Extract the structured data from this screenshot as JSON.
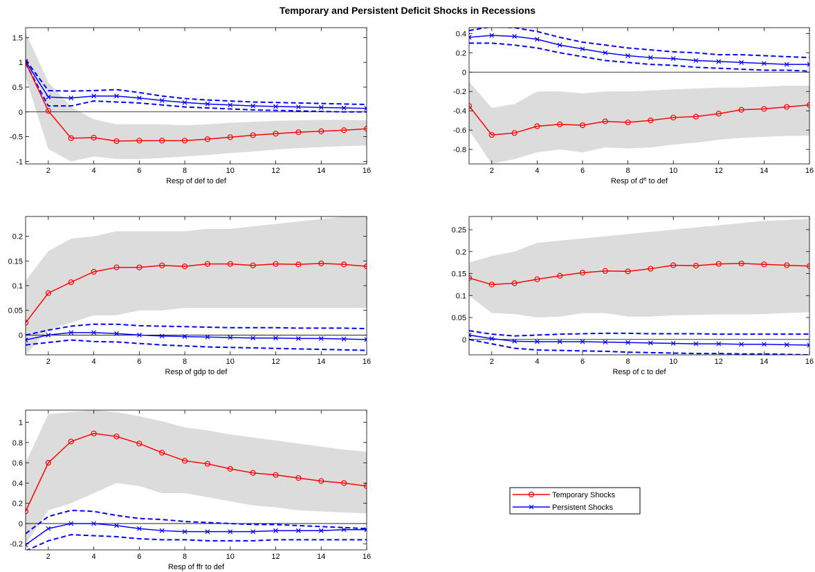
{
  "title": "Temporary and Persistent Deficit Shocks in Recessions",
  "chart_data": [
    {
      "type": "line",
      "xlabel": "Resp of def to def",
      "x": [
        1,
        2,
        3,
        4,
        5,
        6,
        7,
        8,
        9,
        10,
        11,
        12,
        13,
        14,
        15,
        16
      ],
      "xlim": [
        1,
        16
      ],
      "xticks": [
        2,
        4,
        6,
        8,
        10,
        12,
        14,
        16
      ],
      "ylim": [
        -1.05,
        1.7
      ],
      "yticks": [
        -1,
        -0.5,
        0,
        0.5,
        1,
        1.5
      ],
      "series": [
        {
          "name": "Temporary Shocks",
          "color": "#ff0000",
          "marker": "o",
          "band": "shaded",
          "band_color": "#dcdcdc",
          "values": [
            1,
            0.02,
            -0.53,
            -0.52,
            -0.59,
            -0.58,
            -0.58,
            -0.58,
            -0.55,
            -0.51,
            -0.47,
            -0.44,
            -0.41,
            -0.39,
            -0.37,
            -0.34
          ],
          "upper": [
            1.6,
            0.6,
            0.1,
            -0.15,
            -0.25,
            -0.25,
            -0.25,
            -0.27,
            -0.25,
            -0.22,
            -0.2,
            -0.18,
            -0.17,
            -0.16,
            -0.16,
            -0.17
          ],
          "lower": [
            0.7,
            -0.75,
            -1.0,
            -0.9,
            -0.95,
            -0.95,
            -0.93,
            -0.9,
            -0.87,
            -0.83,
            -0.8,
            -0.76,
            -0.73,
            -0.71,
            -0.69,
            -0.68
          ]
        },
        {
          "name": "Persistent Shocks",
          "color": "#0000ff",
          "marker": "x",
          "band": "dashed",
          "band_color": "#0000ff",
          "values": [
            1.02,
            0.3,
            0.28,
            0.32,
            0.32,
            0.28,
            0.23,
            0.19,
            0.16,
            0.14,
            0.12,
            0.11,
            0.1,
            0.09,
            0.08,
            0.07
          ],
          "upper": [
            1.05,
            0.43,
            0.42,
            0.43,
            0.45,
            0.39,
            0.32,
            0.27,
            0.24,
            0.22,
            0.2,
            0.19,
            0.18,
            0.17,
            0.16,
            0.15
          ],
          "lower": [
            0.98,
            0.12,
            0.12,
            0.22,
            0.2,
            0.18,
            0.14,
            0.1,
            0.08,
            0.06,
            0.04,
            0.03,
            0.02,
            0.01,
            0.0,
            0.0
          ]
        }
      ]
    },
    {
      "type": "line",
      "xlabel": [
        "Resp of d",
        "e",
        " to def"
      ],
      "x": [
        1,
        2,
        3,
        4,
        5,
        6,
        7,
        8,
        9,
        10,
        11,
        12,
        13,
        14,
        15,
        16
      ],
      "xlim": [
        1,
        16
      ],
      "xticks": [
        2,
        4,
        6,
        8,
        10,
        12,
        14,
        16
      ],
      "ylim": [
        -0.95,
        0.46
      ],
      "yticks": [
        -0.8,
        -0.6,
        -0.4,
        -0.2,
        0,
        0.2,
        0.4
      ],
      "series": [
        {
          "name": "Temporary Shocks",
          "color": "#ff0000",
          "marker": "o",
          "band": "shaded",
          "band_color": "#dcdcdc",
          "values": [
            -0.35,
            -0.65,
            -0.63,
            -0.56,
            -0.54,
            -0.55,
            -0.51,
            -0.52,
            -0.5,
            -0.47,
            -0.46,
            -0.43,
            -0.39,
            -0.38,
            -0.36,
            -0.34
          ],
          "upper": [
            -0.1,
            -0.37,
            -0.33,
            -0.2,
            -0.2,
            -0.22,
            -0.2,
            -0.2,
            -0.19,
            -0.18,
            -0.17,
            -0.16,
            -0.16,
            -0.15,
            -0.14,
            -0.14
          ],
          "lower": [
            -0.6,
            -0.95,
            -0.9,
            -0.83,
            -0.8,
            -0.83,
            -0.78,
            -0.79,
            -0.78,
            -0.75,
            -0.73,
            -0.7,
            -0.68,
            -0.67,
            -0.66,
            -0.66
          ]
        },
        {
          "name": "Persistent Shocks",
          "color": "#0000ff",
          "marker": "x",
          "band": "dashed",
          "band_color": "#0000ff",
          "values": [
            0.36,
            0.38,
            0.37,
            0.34,
            0.28,
            0.24,
            0.2,
            0.17,
            0.15,
            0.14,
            0.12,
            0.11,
            0.1,
            0.09,
            0.08,
            0.08
          ],
          "upper": [
            0.43,
            0.47,
            0.46,
            0.42,
            0.36,
            0.31,
            0.28,
            0.25,
            0.23,
            0.21,
            0.2,
            0.18,
            0.18,
            0.17,
            0.16,
            0.15
          ],
          "lower": [
            0.3,
            0.3,
            0.28,
            0.25,
            0.2,
            0.16,
            0.12,
            0.1,
            0.08,
            0.07,
            0.05,
            0.04,
            0.03,
            0.02,
            0.02,
            0.01
          ]
        }
      ]
    },
    {
      "type": "line",
      "xlabel": "Resp of gdp to def",
      "x": [
        1,
        2,
        3,
        4,
        5,
        6,
        7,
        8,
        9,
        10,
        11,
        12,
        13,
        14,
        15,
        16
      ],
      "xlim": [
        1,
        16
      ],
      "xticks": [
        2,
        4,
        6,
        8,
        10,
        12,
        14,
        16
      ],
      "ylim": [
        -0.04,
        0.24
      ],
      "yticks": [
        0,
        0.05,
        0.1,
        0.15,
        0.2
      ],
      "series": [
        {
          "name": "Temporary Shocks",
          "color": "#ff0000",
          "marker": "o",
          "band": "shaded",
          "band_color": "#dcdcdc",
          "values": [
            0.025,
            0.085,
            0.107,
            0.128,
            0.137,
            0.137,
            0.141,
            0.139,
            0.144,
            0.144,
            0.141,
            0.144,
            0.143,
            0.145,
            0.143,
            0.139
          ],
          "upper": [
            0.11,
            0.17,
            0.195,
            0.2,
            0.21,
            0.21,
            0.21,
            0.21,
            0.215,
            0.215,
            0.22,
            0.225,
            0.23,
            0.235,
            0.24,
            0.24
          ],
          "lower": [
            -0.04,
            0.01,
            0.025,
            0.04,
            0.04,
            0.05,
            0.05,
            0.055,
            0.055,
            0.055,
            0.055,
            0.055,
            0.055,
            0.055,
            0.055,
            0.055
          ]
        },
        {
          "name": "Persistent Shocks",
          "color": "#0000ff",
          "marker": "x",
          "band": "dashed",
          "band_color": "#0000ff",
          "values": [
            -0.01,
            0.0,
            0.005,
            0.005,
            0.003,
            0.0,
            -0.002,
            -0.003,
            -0.004,
            -0.005,
            -0.006,
            -0.006,
            -0.007,
            -0.007,
            -0.008,
            -0.009
          ],
          "upper": [
            0.0,
            0.01,
            0.018,
            0.022,
            0.022,
            0.019,
            0.018,
            0.017,
            0.016,
            0.015,
            0.015,
            0.015,
            0.014,
            0.014,
            0.014,
            0.013
          ],
          "lower": [
            -0.02,
            -0.015,
            -0.01,
            -0.013,
            -0.014,
            -0.017,
            -0.02,
            -0.022,
            -0.024,
            -0.025,
            -0.026,
            -0.027,
            -0.028,
            -0.029,
            -0.03,
            -0.031
          ]
        }
      ]
    },
    {
      "type": "line",
      "xlabel": "Resp of c to def",
      "x": [
        1,
        2,
        3,
        4,
        5,
        6,
        7,
        8,
        9,
        10,
        11,
        12,
        13,
        14,
        15,
        16
      ],
      "xlim": [
        1,
        16
      ],
      "xticks": [
        2,
        4,
        6,
        8,
        10,
        12,
        14,
        16
      ],
      "ylim": [
        -0.035,
        0.28
      ],
      "yticks": [
        0,
        0.05,
        0.1,
        0.15,
        0.2,
        0.25
      ],
      "series": [
        {
          "name": "Temporary Shocks",
          "color": "#ff0000",
          "marker": "o",
          "band": "shaded",
          "band_color": "#dcdcdc",
          "values": [
            0.14,
            0.125,
            0.128,
            0.137,
            0.145,
            0.152,
            0.156,
            0.155,
            0.161,
            0.169,
            0.168,
            0.172,
            0.173,
            0.171,
            0.169,
            0.167
          ],
          "upper": [
            0.175,
            0.19,
            0.2,
            0.22,
            0.225,
            0.23,
            0.235,
            0.24,
            0.245,
            0.25,
            0.255,
            0.26,
            0.265,
            0.27,
            0.272,
            0.275
          ],
          "lower": [
            0.1,
            0.06,
            0.058,
            0.05,
            0.052,
            0.06,
            0.06,
            0.052,
            0.052,
            0.055,
            0.056,
            0.057,
            0.057,
            0.058,
            0.06,
            0.062
          ]
        },
        {
          "name": "Persistent Shocks",
          "color": "#0000ff",
          "marker": "x",
          "band": "dashed",
          "band_color": "#0000ff",
          "values": [
            0.01,
            0.002,
            -0.004,
            -0.005,
            -0.005,
            -0.005,
            -0.006,
            -0.007,
            -0.008,
            -0.009,
            -0.01,
            -0.01,
            -0.011,
            -0.011,
            -0.012,
            -0.013
          ],
          "upper": [
            0.02,
            0.012,
            0.008,
            0.01,
            0.012,
            0.013,
            0.014,
            0.014,
            0.013,
            0.013,
            0.013,
            0.012,
            0.012,
            0.012,
            0.012,
            0.012
          ],
          "lower": [
            0.0,
            -0.01,
            -0.02,
            -0.024,
            -0.025,
            -0.026,
            -0.027,
            -0.029,
            -0.03,
            -0.031,
            -0.032,
            -0.032,
            -0.033,
            -0.033,
            -0.034,
            -0.035
          ]
        }
      ]
    },
    {
      "type": "line",
      "xlabel": "Resp of ffr to def",
      "x": [
        1,
        2,
        3,
        4,
        5,
        6,
        7,
        8,
        9,
        10,
        11,
        12,
        13,
        14,
        15,
        16
      ],
      "xlim": [
        1,
        16
      ],
      "xticks": [
        2,
        4,
        6,
        8,
        10,
        12,
        14,
        16
      ],
      "ylim": [
        -0.26,
        1.12
      ],
      "yticks": [
        -0.2,
        0,
        0.2,
        0.4,
        0.6,
        0.8,
        1
      ],
      "series": [
        {
          "name": "Temporary Shocks",
          "color": "#ff0000",
          "marker": "o",
          "band": "shaded",
          "band_color": "#dcdcdc",
          "values": [
            0.12,
            0.6,
            0.81,
            0.89,
            0.86,
            0.79,
            0.7,
            0.62,
            0.59,
            0.54,
            0.5,
            0.48,
            0.45,
            0.42,
            0.4,
            0.37
          ],
          "upper": [
            0.6,
            1.08,
            1.1,
            1.12,
            1.1,
            1.06,
            1.01,
            0.95,
            0.92,
            0.88,
            0.85,
            0.82,
            0.79,
            0.76,
            0.73,
            0.71
          ],
          "lower": [
            -0.2,
            0.13,
            0.2,
            0.3,
            0.4,
            0.37,
            0.3,
            0.3,
            0.26,
            0.22,
            0.18,
            0.16,
            0.13,
            0.12,
            0.11,
            0.1
          ]
        },
        {
          "name": "Persistent Shocks",
          "color": "#0000ff",
          "marker": "x",
          "band": "dashed",
          "band_color": "#0000ff",
          "values": [
            -0.21,
            -0.05,
            0.0,
            0.0,
            -0.02,
            -0.05,
            -0.07,
            -0.08,
            -0.08,
            -0.08,
            -0.08,
            -0.07,
            -0.07,
            -0.07,
            -0.06,
            -0.06
          ],
          "upper": [
            -0.1,
            0.07,
            0.13,
            0.12,
            0.08,
            0.05,
            0.04,
            0.02,
            0.01,
            0.0,
            -0.01,
            -0.01,
            -0.02,
            -0.03,
            -0.04,
            -0.05
          ],
          "lower": [
            -0.27,
            -0.17,
            -0.11,
            -0.12,
            -0.13,
            -0.15,
            -0.16,
            -0.16,
            -0.17,
            -0.17,
            -0.17,
            -0.16,
            -0.16,
            -0.16,
            -0.16,
            -0.16
          ]
        }
      ]
    }
  ]
}
